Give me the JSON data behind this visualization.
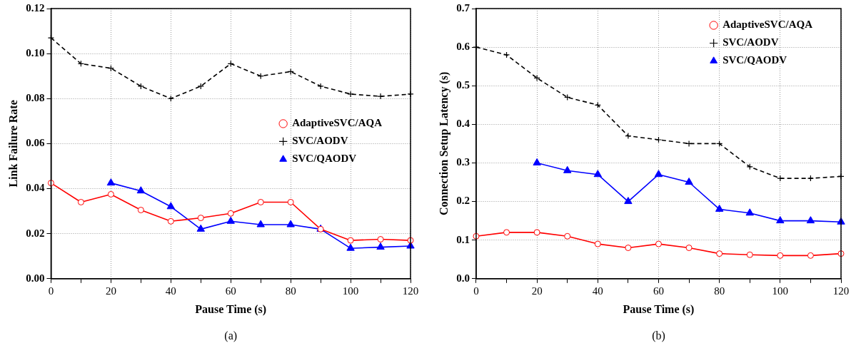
{
  "chart_data": [
    {
      "type": "line",
      "xlabel": "Pause Time (s)",
      "ylabel": "Link Failure Rate",
      "annotations": [
        "(a)"
      ],
      "x": [
        0,
        10,
        20,
        30,
        40,
        50,
        60,
        70,
        80,
        90,
        100,
        110,
        120
      ],
      "xlim": [
        0,
        120
      ],
      "xticks": [
        0,
        {
          "value": 10,
          "label": null
        },
        20,
        {
          "value": 30,
          "label": null
        },
        40,
        {
          "value": 50,
          "label": null
        },
        60,
        {
          "value": 70,
          "label": null
        },
        80,
        {
          "value": 90,
          "label": null
        },
        100,
        {
          "value": 110,
          "label": null
        },
        120
      ],
      "ylim": [
        0,
        0.12
      ],
      "yticks": [
        {
          "value": 0,
          "label": "0.00"
        },
        {
          "value": 0.02,
          "label": "0.02"
        },
        {
          "value": 0.04,
          "label": "0.04"
        },
        {
          "value": 0.06,
          "label": "0.06"
        },
        {
          "value": 0.08,
          "label": "0.08"
        },
        {
          "value": 0.1,
          "label": "0.10"
        },
        {
          "value": 0.12,
          "label": "0.12"
        }
      ],
      "grid": true,
      "legend": "right",
      "series": [
        {
          "name": "AdaptiveSVC/AQA",
          "color": "#ff0000",
          "marker": "circle",
          "line_style": "solid",
          "values": [
            0.0425,
            0.034,
            0.0375,
            0.0305,
            0.0255,
            0.027,
            0.029,
            0.034,
            0.034,
            0.022,
            0.017,
            0.0175,
            0.017
          ]
        },
        {
          "name": "SVC/AODV",
          "color": "#000000",
          "marker": "cross",
          "line_style": "dashed",
          "values": [
            0.107,
            0.0955,
            0.0935,
            0.0855,
            0.08,
            0.0855,
            0.0955,
            0.09,
            0.092,
            0.0855,
            0.082,
            0.081,
            0.082
          ]
        },
        {
          "name": "SVC/QAODV",
          "color": "#0000ff",
          "marker": "triangle",
          "line_style": "solid",
          "values": [
            null,
            null,
            0.0425,
            0.039,
            0.032,
            0.022,
            0.0255,
            0.024,
            0.024,
            0.022,
            0.0135,
            0.014,
            0.0145
          ]
        }
      ]
    },
    {
      "type": "line",
      "xlabel": "Pause Time (s)",
      "ylabel": "Connection Setup Latency (s)",
      "annotations": [
        "(b)"
      ],
      "x": [
        0,
        10,
        20,
        30,
        40,
        50,
        60,
        70,
        80,
        90,
        100,
        110,
        120
      ],
      "xlim": [
        0,
        120
      ],
      "xticks": [
        0,
        {
          "value": 10,
          "label": null
        },
        20,
        {
          "value": 30,
          "label": null
        },
        40,
        {
          "value": 50,
          "label": null
        },
        60,
        {
          "value": 70,
          "label": null
        },
        80,
        {
          "value": 90,
          "label": null
        },
        100,
        {
          "value": 110,
          "label": null
        },
        120
      ],
      "ylim": [
        0,
        0.7
      ],
      "yticks": [
        {
          "value": 0,
          "label": "0.0"
        },
        {
          "value": 0.1,
          "label": "0.1"
        },
        {
          "value": 0.2,
          "label": "0.2"
        },
        {
          "value": 0.3,
          "label": "0.3"
        },
        {
          "value": 0.4,
          "label": "0.4"
        },
        {
          "value": 0.5,
          "label": "0.5"
        },
        {
          "value": 0.6,
          "label": "0.6"
        },
        {
          "value": 0.7,
          "label": "0.7"
        }
      ],
      "grid": true,
      "legend": "top right",
      "series": [
        {
          "name": "AdaptiveSVC/AQA",
          "color": "#ff0000",
          "marker": "circle",
          "line_style": "solid",
          "values": [
            0.11,
            0.12,
            0.12,
            0.11,
            0.09,
            0.08,
            0.09,
            0.08,
            0.065,
            0.062,
            0.06,
            0.06,
            0.065
          ]
        },
        {
          "name": "SVC/AODV",
          "color": "#000000",
          "marker": "cross",
          "line_style": "dashed",
          "values": [
            0.6,
            0.58,
            0.52,
            0.47,
            0.45,
            0.37,
            0.36,
            0.35,
            0.35,
            0.29,
            0.26,
            0.26,
            0.265
          ]
        },
        {
          "name": "SVC/QAODV",
          "color": "#0000ff",
          "marker": "triangle",
          "line_style": "solid",
          "values": [
            null,
            null,
            0.3,
            0.28,
            0.27,
            0.2,
            0.27,
            0.25,
            0.18,
            0.17,
            0.15,
            0.15,
            0.147
          ]
        }
      ]
    }
  ]
}
